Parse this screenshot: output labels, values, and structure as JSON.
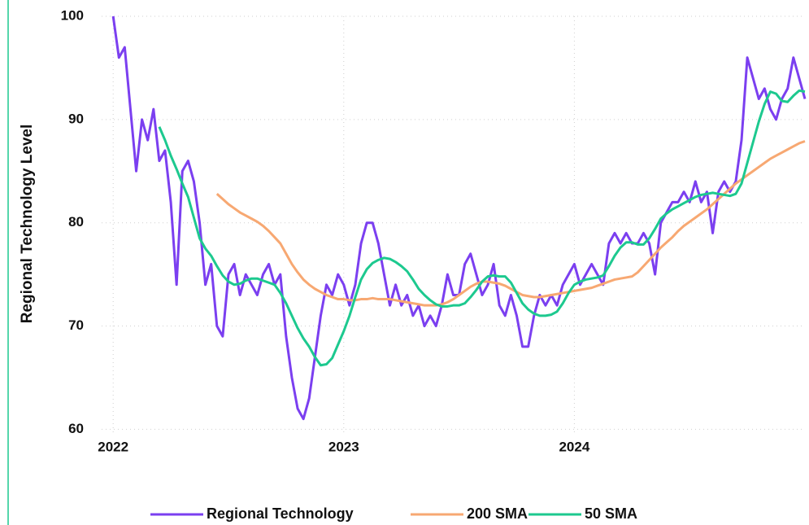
{
  "chart_data": {
    "type": "line",
    "ylabel": "Regional Technology Level",
    "x": [
      2022.0,
      2022.025,
      2022.05,
      2022.075,
      2022.1,
      2022.125,
      2022.15,
      2022.175,
      2022.2,
      2022.225,
      2022.25,
      2022.275,
      2022.3,
      2022.325,
      2022.35,
      2022.375,
      2022.4,
      2022.425,
      2022.45,
      2022.475,
      2022.5,
      2022.525,
      2022.55,
      2022.575,
      2022.6,
      2022.625,
      2022.65,
      2022.675,
      2022.7,
      2022.725,
      2022.75,
      2022.775,
      2022.8,
      2022.825,
      2022.85,
      2022.875,
      2022.9,
      2022.925,
      2022.95,
      2022.975,
      2023.0,
      2023.025,
      2023.05,
      2023.075,
      2023.1,
      2023.125,
      2023.15,
      2023.175,
      2023.2,
      2023.225,
      2023.25,
      2023.275,
      2023.3,
      2023.325,
      2023.35,
      2023.375,
      2023.4,
      2023.425,
      2023.45,
      2023.475,
      2023.5,
      2023.525,
      2023.55,
      2023.575,
      2023.6,
      2023.625,
      2023.65,
      2023.675,
      2023.7,
      2023.725,
      2023.75,
      2023.775,
      2023.8,
      2023.825,
      2023.85,
      2023.875,
      2023.9,
      2023.925,
      2023.95,
      2023.975,
      2024.0,
      2024.025,
      2024.05,
      2024.075,
      2024.1,
      2024.125,
      2024.15,
      2024.175,
      2024.2,
      2024.225,
      2024.25,
      2024.275,
      2024.3,
      2024.325,
      2024.35,
      2024.375,
      2024.4,
      2024.425,
      2024.45,
      2024.475,
      2024.5,
      2024.525,
      2024.55,
      2024.575,
      2024.6,
      2024.625,
      2024.65,
      2024.675,
      2024.7,
      2024.725,
      2024.75,
      2024.775,
      2024.8,
      2024.825,
      2024.85,
      2024.875,
      2024.9,
      2024.925,
      2024.95,
      2024.975,
      2025.0
    ],
    "series": [
      {
        "name": "Regional Technology",
        "color": "#7b3ff0",
        "values": [
          100,
          96,
          97,
          91,
          85,
          90,
          88,
          91,
          86,
          87,
          82,
          74,
          85,
          86,
          84,
          80,
          74,
          76,
          70,
          69,
          75,
          76,
          73,
          75,
          74,
          73,
          75,
          76,
          74,
          75,
          69,
          65,
          62,
          61,
          63,
          67,
          71,
          74,
          73,
          75,
          74,
          72,
          74,
          78,
          80,
          80,
          78,
          75,
          72,
          74,
          72,
          73,
          71,
          72,
          70,
          71,
          70,
          72,
          75,
          73,
          73,
          76,
          77,
          75,
          73,
          74,
          76,
          72,
          71,
          73,
          71,
          68,
          68,
          71,
          73,
          72,
          73,
          72,
          74,
          75,
          76,
          74,
          75,
          76,
          75,
          74,
          78,
          79,
          78,
          79,
          78,
          78,
          79,
          78,
          75,
          80,
          81,
          82,
          82,
          83,
          82,
          84,
          82,
          83,
          79,
          83,
          84,
          83,
          84,
          88,
          96,
          94,
          92,
          93,
          91,
          90,
          92,
          93,
          96,
          94,
          92
        ]
      },
      {
        "name": "200 SMA",
        "color": "#f7a872",
        "values": [
          null,
          null,
          null,
          null,
          null,
          null,
          null,
          null,
          null,
          null,
          null,
          null,
          null,
          null,
          null,
          null,
          null,
          null,
          82.8,
          82.3,
          81.8,
          81.4,
          81.0,
          80.7,
          80.4,
          80.1,
          79.7,
          79.2,
          78.6,
          78.0,
          77.0,
          76.0,
          75.2,
          74.5,
          74.0,
          73.6,
          73.3,
          73.0,
          72.8,
          72.6,
          72.6,
          72.5,
          72.5,
          72.6,
          72.6,
          72.7,
          72.6,
          72.6,
          72.6,
          72.5,
          72.4,
          72.3,
          72.2,
          72.1,
          72.0,
          72.0,
          72.0,
          72.1,
          72.3,
          72.6,
          73.0,
          73.4,
          73.8,
          74.1,
          74.3,
          74.3,
          74.2,
          74.1,
          73.9,
          73.6,
          73.3,
          73.0,
          72.9,
          72.8,
          72.8,
          72.9,
          73.0,
          73.1,
          73.2,
          73.3,
          73.4,
          73.5,
          73.6,
          73.7,
          73.9,
          74.1,
          74.3,
          74.5,
          74.6,
          74.7,
          74.8,
          75.2,
          75.8,
          76.4,
          77.0,
          77.6,
          78.1,
          78.6,
          79.2,
          79.7,
          80.1,
          80.5,
          80.9,
          81.3,
          81.8,
          82.3,
          82.8,
          83.3,
          83.8,
          84.2,
          84.6,
          85.0,
          85.4,
          85.8,
          86.2,
          86.5,
          86.8,
          87.1,
          87.4,
          87.7,
          87.9
        ]
      },
      {
        "name": "50 SMA",
        "color": "#1dc98f",
        "values": [
          null,
          null,
          null,
          null,
          null,
          null,
          null,
          null,
          89.3,
          88.0,
          86.5,
          85.2,
          83.8,
          82.5,
          80.5,
          78.5,
          77.5,
          76.8,
          75.8,
          74.9,
          74.3,
          74.0,
          74.1,
          74.4,
          74.6,
          74.6,
          74.4,
          74.2,
          74.0,
          73.2,
          72.2,
          71.0,
          69.8,
          68.8,
          68.0,
          67.0,
          66.2,
          66.3,
          66.9,
          68.2,
          69.5,
          71.0,
          72.8,
          74.5,
          75.5,
          76.1,
          76.4,
          76.6,
          76.5,
          76.2,
          75.8,
          75.3,
          74.5,
          73.6,
          73.0,
          72.5,
          72.1,
          71.9,
          71.9,
          72.0,
          72.0,
          72.2,
          72.8,
          73.5,
          74.3,
          74.8,
          74.9,
          74.8,
          74.8,
          74.2,
          73.2,
          72.2,
          71.6,
          71.2,
          71.0,
          71.0,
          71.1,
          71.4,
          72.2,
          73.2,
          74.0,
          74.3,
          74.5,
          74.6,
          74.7,
          74.9,
          75.8,
          76.8,
          77.6,
          78.1,
          78.1,
          77.9,
          77.9,
          78.5,
          79.4,
          80.4,
          80.9,
          81.3,
          81.6,
          81.9,
          82.2,
          82.5,
          82.7,
          82.8,
          82.9,
          82.8,
          82.7,
          82.6,
          82.8,
          83.8,
          85.8,
          87.8,
          89.8,
          91.5,
          92.7,
          92.5,
          91.8,
          91.7,
          92.3,
          92.8,
          92.7
        ]
      }
    ],
    "xlim": [
      2021.95,
      2025.0
    ],
    "xticks": [
      2022,
      2023,
      2024
    ],
    "ylim": [
      59.4,
      100
    ],
    "yticks": [
      60,
      70,
      80,
      90,
      100
    ],
    "grid": true,
    "legend": "bottom"
  }
}
